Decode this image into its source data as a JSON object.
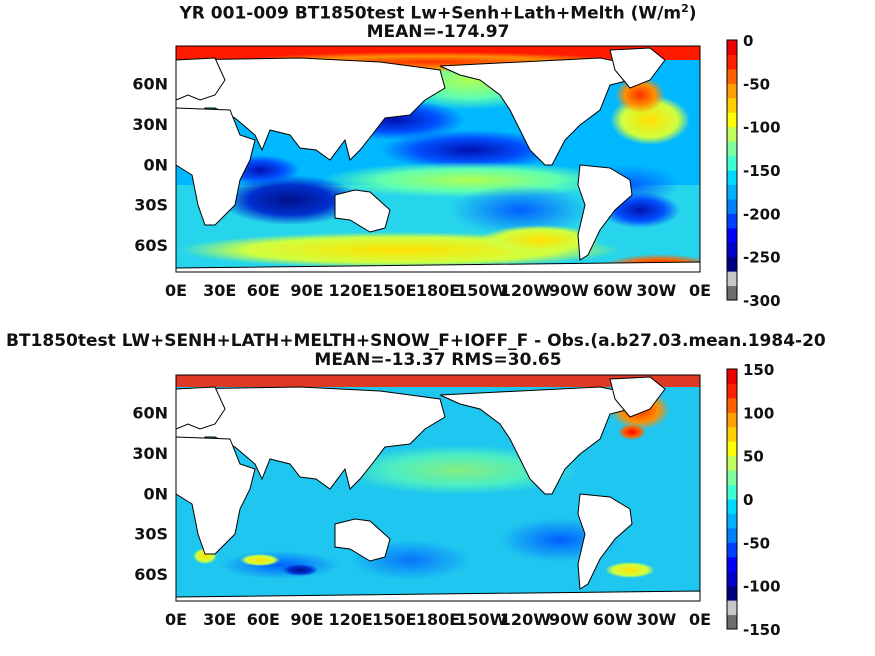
{
  "chart_data": [
    {
      "type": "heatmap",
      "title": "YR 001-009 BT1850test Lw+Senh+Lath+Melth (W/m",
      "title_superscript": "2",
      "title_suffix": ")",
      "subtitle": "MEAN=-174.97",
      "x_ticks": [
        "0E",
        "30E",
        "60E",
        "90E",
        "120E",
        "150E",
        "180E",
        "150W",
        "120W",
        "90W",
        "60W",
        "30W",
        "0E"
      ],
      "y_ticks": [
        "60N",
        "30N",
        "0N",
        "30S",
        "60S"
      ],
      "y_tick_values": [
        60,
        30,
        0,
        -30,
        -60
      ],
      "xlim": [
        0,
        360
      ],
      "ylim": [
        -80,
        88
      ],
      "colorbar": {
        "ticks": [
          "0",
          "-50",
          "-100",
          "-150",
          "-200",
          "-250",
          "-300"
        ],
        "values": [
          0,
          -50,
          -100,
          -150,
          -200,
          -250,
          -300
        ],
        "range": [
          -300,
          0
        ]
      },
      "ocean_color": "#1ab4e8"
    },
    {
      "type": "heatmap",
      "title": "BT1850test LW+SENH+LATH+MELTH+SNOW_F+IOFF_F - Obs.(a.b27.03.mean.1984-20",
      "subtitle": "MEAN=-13.37 RMS=30.65",
      "x_ticks": [
        "0E",
        "30E",
        "60E",
        "90E",
        "120E",
        "150E",
        "180E",
        "150W",
        "120W",
        "90W",
        "60W",
        "30W",
        "0E"
      ],
      "y_ticks": [
        "60N",
        "30N",
        "0N",
        "30S",
        "60S"
      ],
      "y_tick_values": [
        60,
        30,
        0,
        -30,
        -60
      ],
      "xlim": [
        0,
        360
      ],
      "ylim": [
        -80,
        88
      ],
      "colorbar": {
        "ticks": [
          "150",
          "100",
          "50",
          "0",
          "-50",
          "-100",
          "-150"
        ],
        "values": [
          150,
          100,
          50,
          0,
          -50,
          -100,
          -150
        ],
        "range": [
          -150,
          150
        ]
      },
      "ocean_color": "#22c8ee"
    }
  ],
  "colorbar_colors": [
    "#6e6e6e",
    "#c8c8c8",
    "#00007f",
    "#0000c8",
    "#0000ff",
    "#0040ff",
    "#0080ff",
    "#00b0ff",
    "#00d8ff",
    "#40ffd0",
    "#80ffa0",
    "#c0ff60",
    "#ffff00",
    "#ffd000",
    "#ffa000",
    "#ff6000",
    "#ff2000",
    "#ee0000"
  ]
}
